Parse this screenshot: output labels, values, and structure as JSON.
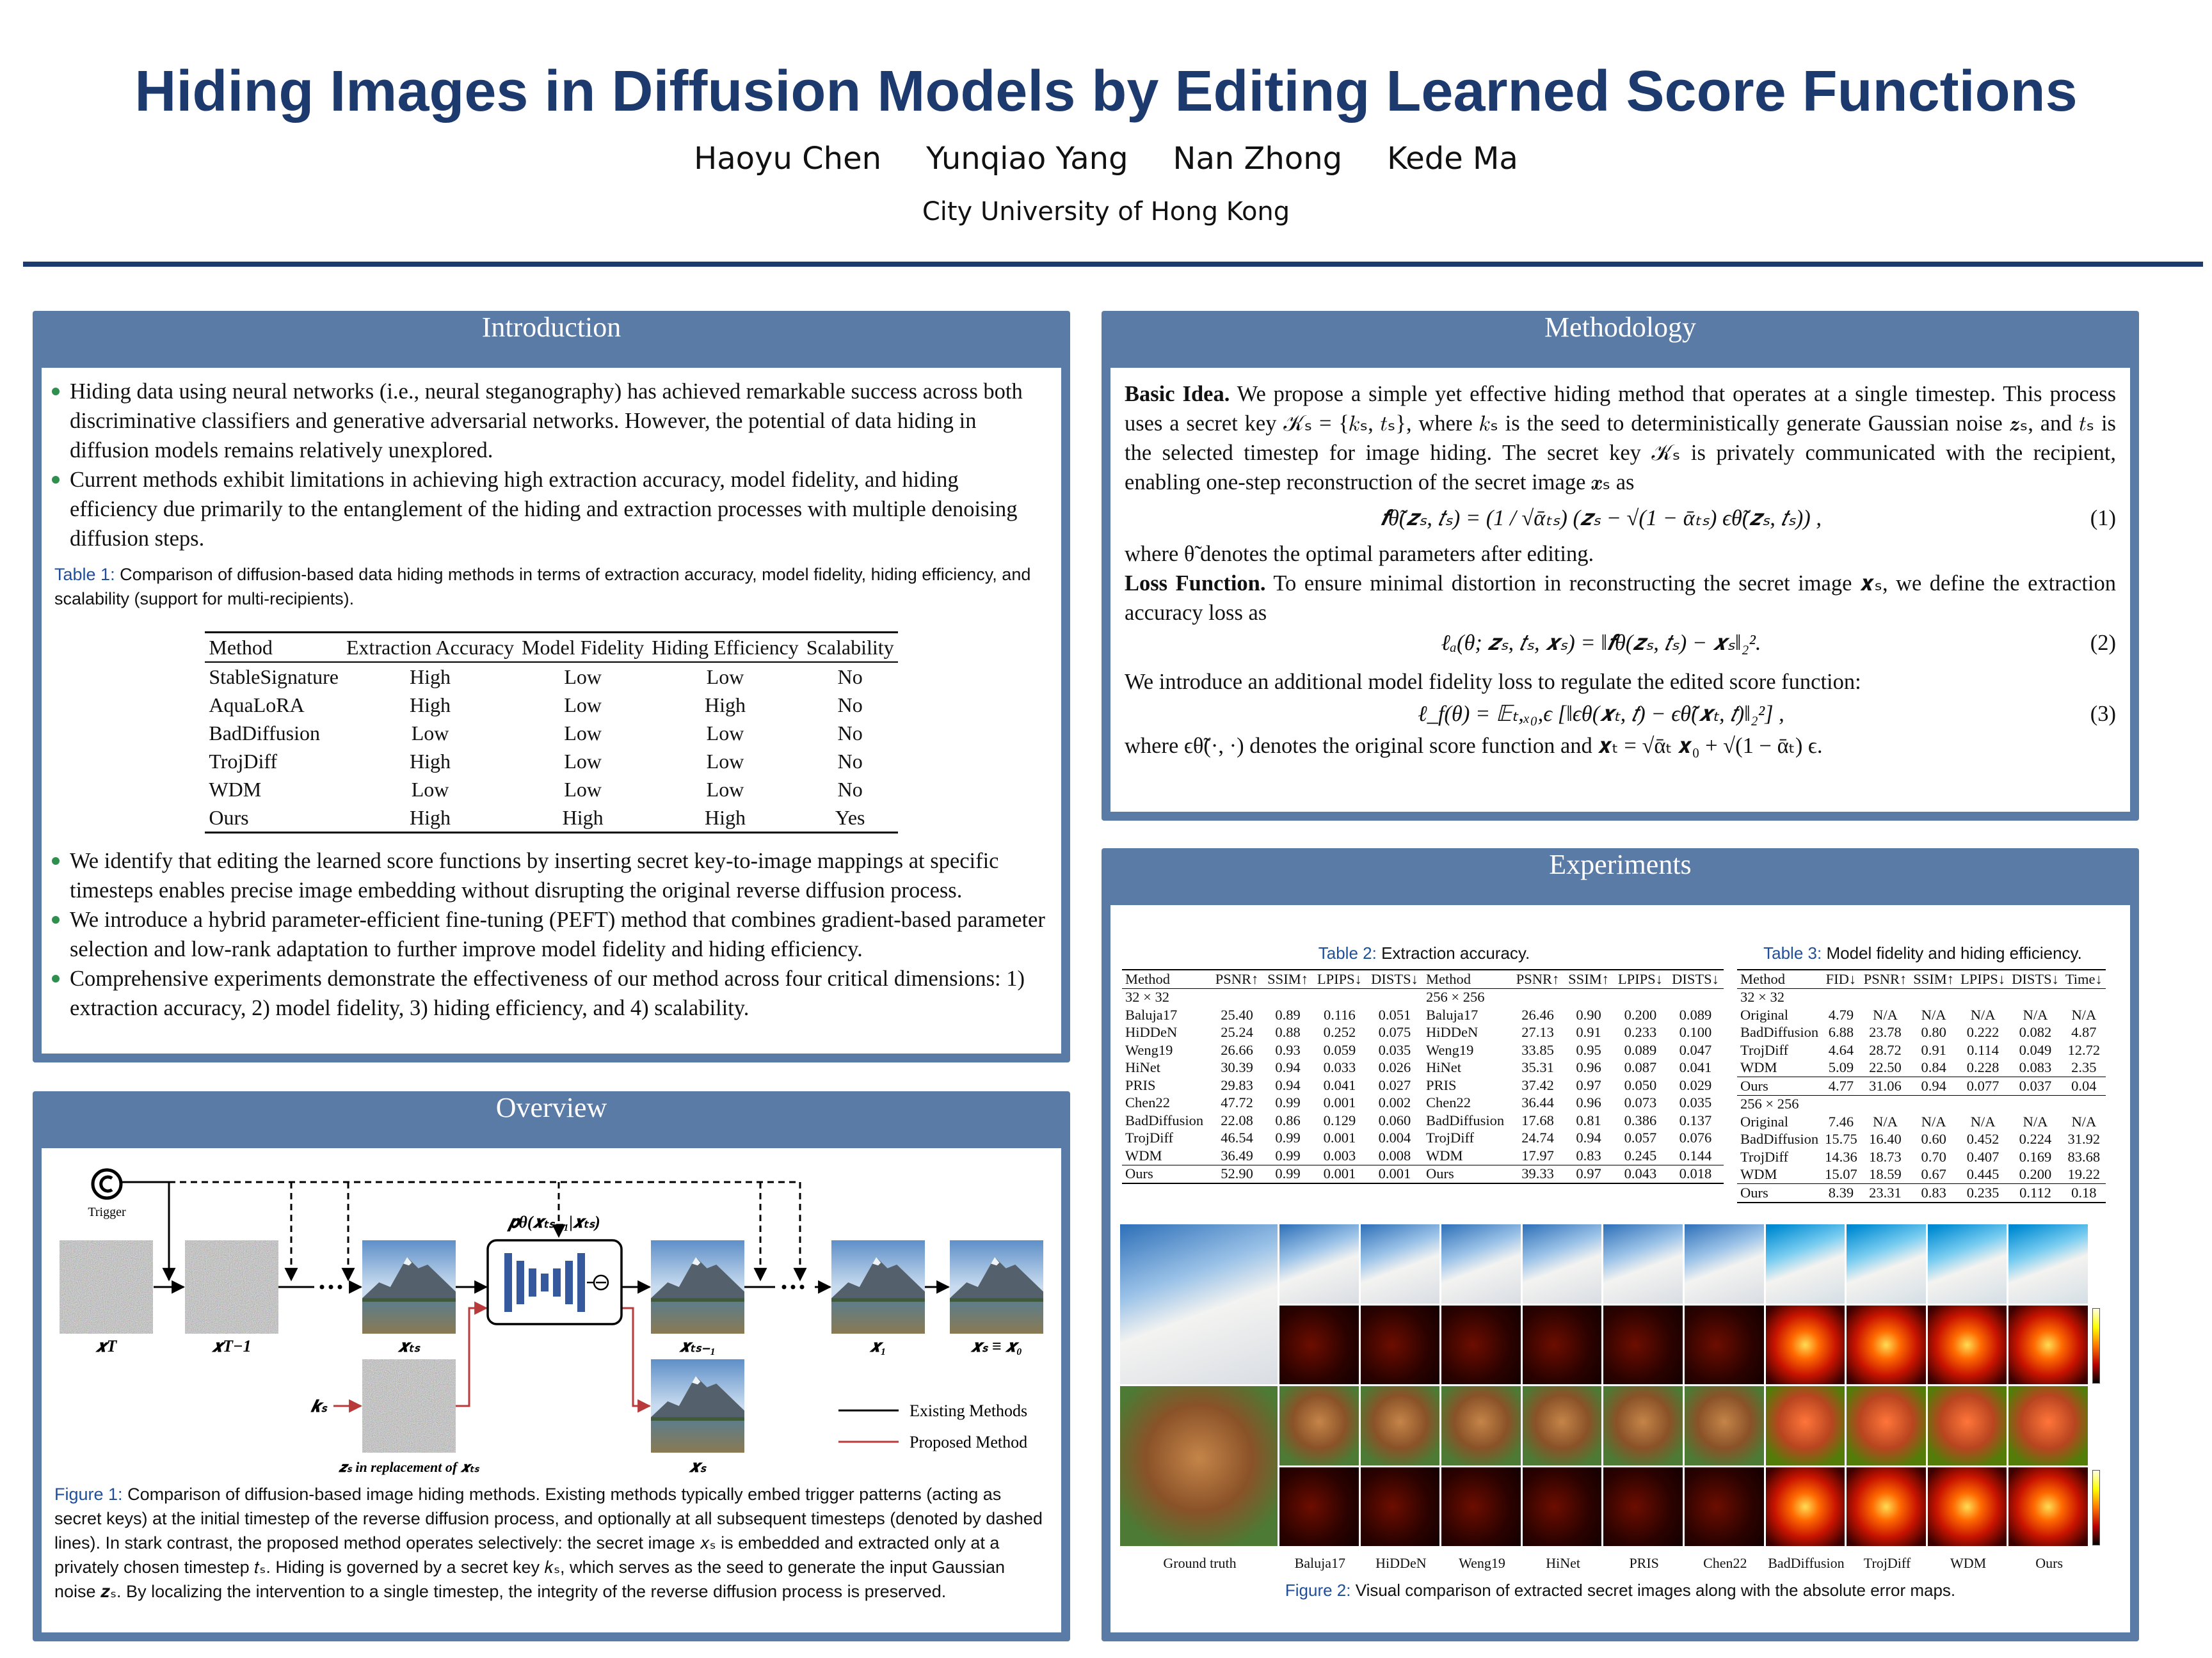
{
  "header": {
    "title": "Hiding Images in Diffusion Models by Editing Learned Score Functions",
    "authors": [
      "Haoyu Chen",
      "Yunqiao Yang",
      "Nan Zhong",
      "Kede Ma"
    ],
    "affiliation": "City University of Hong Kong"
  },
  "introduction": {
    "heading": "Introduction",
    "bullets_top": [
      "Hiding data using neural networks (i.e., neural steganography) has achieved remarkable success across both discriminative classifiers and generative adversarial networks. However, the potential of data hiding in diffusion models remains relatively unexplored.",
      "Current methods exhibit limitations in achieving high extraction accuracy, model fidelity, and hiding efficiency due primarily to the entanglement of the hiding and extraction processes with multiple denoising diffusion steps."
    ],
    "table": {
      "label": "Table 1:",
      "caption": "Comparison of diffusion-based data hiding methods in terms of extraction accuracy, model fidelity, hiding efficiency, and scalability (support for multi-recipients).",
      "columns": [
        "Method",
        "Extraction Accuracy",
        "Model Fidelity",
        "Hiding Efficiency",
        "Scalability"
      ],
      "rows": [
        [
          "StableSignature",
          "High",
          "Low",
          "Low",
          "No"
        ],
        [
          "AquaLoRA",
          "High",
          "Low",
          "High",
          "No"
        ],
        [
          "BadDiffusion",
          "Low",
          "Low",
          "Low",
          "No"
        ],
        [
          "TrojDiff",
          "High",
          "Low",
          "Low",
          "No"
        ],
        [
          "WDM",
          "Low",
          "Low",
          "Low",
          "No"
        ],
        [
          "Ours",
          "High",
          "High",
          "High",
          "Yes"
        ]
      ]
    },
    "bullets_bottom": [
      "We identify that editing the learned score functions by inserting secret key-to-image mappings at specific timesteps enables precise image embedding without disrupting the original reverse diffusion process.",
      "We introduce a hybrid parameter-efficient fine-tuning (PEFT) method that combines gradient-based parameter selection and low-rank adaptation to further improve model fidelity and hiding efficiency.",
      "Comprehensive experiments demonstrate the effectiveness of our method across four critical dimensions: 1) extraction accuracy, 2) model fidelity, 3) hiding efficiency, and 4) scalability."
    ]
  },
  "overview": {
    "heading": "Overview",
    "figure": {
      "trigger": "Trigger",
      "x_T": "𝒙T",
      "x_T_minus_1": "𝒙T−1",
      "x_ts": "𝒙ₜₛ",
      "p_theta": "𝒑θ(𝒙ₜₛ₋₁|𝒙ₜₛ)",
      "x_ts_minus_1": "𝒙ₜₛ₋₁",
      "x_1": "𝒙₁",
      "x_0": "𝒙ₛ ≡ 𝒙₀",
      "k_s": "𝒌ₛ",
      "z_s": "𝒛ₛ in replacement of 𝒙ₜₛ",
      "x_s": "𝒙ₛ"
    },
    "legend": [
      "Existing Methods",
      "Proposed Method"
    ],
    "caption": {
      "label": "Figure 1:",
      "text": "Comparison of diffusion-based image hiding methods. Existing methods typically embed trigger patterns (acting as secret keys) at the initial timestep of the reverse diffusion process, and optionally at all subsequent timesteps (denoted by dashed lines). In stark contrast, the proposed method operates selectively: the secret image 𝑥ₛ is embedded and extracted only at a privately chosen timestep 𝑡ₛ. Hiding is governed by a secret key 𝑘ₛ, which serves as the seed to generate the input Gaussian noise 𝒛ₛ. By localizing the intervention to a single timestep, the integrity of the reverse diffusion process is preserved."
    }
  },
  "methodology": {
    "heading": "Methodology",
    "basic_idea": {
      "heading": "Basic Idea.",
      "text": "We propose a simple yet effective hiding method that operates at a single timestep. This process uses a secret key 𝒦ₛ = {𝑘ₛ, 𝑡ₛ}, where 𝑘ₛ is the seed to deterministically generate Gaussian noise 𝒛ₛ, and 𝑡ₛ is the selected timestep for image hiding. The secret key 𝒦ₛ is privately communicated with the recipient, enabling one-step reconstruction of the secret image 𝒙ₛ as"
    },
    "equation_1": {
      "formula": "𝒇θ̃(𝒛ₛ, 𝑡ₛ) = (1 / √ᾱₜₛ) (𝒛ₛ − √(1 − ᾱₜₛ) ϵθ̃(𝒛ₛ, 𝑡ₛ)) ,",
      "number": "(1)"
    },
    "after_eq1": "where θ̃ denotes the optimal parameters after editing.",
    "loss_function": {
      "heading": "Loss Function.",
      "text": "To ensure minimal distortion in reconstructing the secret image 𝒙ₛ, we define the extraction accuracy loss as"
    },
    "equation_2": {
      "formula": "ℓₐ(θ; 𝒛ₛ, 𝑡ₛ, 𝒙ₛ) = ‖𝒇θ(𝒛ₛ, 𝑡ₛ) − 𝒙ₛ‖₂².",
      "number": "(2)"
    },
    "fidelity_intro": "We introduce an additional model fidelity loss to regulate the edited score function:",
    "equation_3": {
      "formula": "ℓ_f(θ) = 𝔼ₜ,ₓ₀,ϵ [‖ϵθ(𝒙ₜ, 𝑡) − ϵθ̃(𝒙ₜ, 𝑡)‖₂²] ,",
      "number": "(3)"
    },
    "after_eq3": "where ϵθ̃(·, ·) denotes the original score function and 𝒙ₜ = √ᾱₜ 𝒙₀ + √(1 − ᾱₜ) ϵ."
  },
  "experiments": {
    "heading": "Experiments",
    "table2": {
      "label": "Table 2:",
      "caption": "Extraction accuracy.",
      "halves": [
        {
          "columns": [
            "Method",
            "PSNR↑",
            "SSIM↑",
            "LPIPS↓",
            "DISTS↓"
          ],
          "group": "32 × 32",
          "rows": [
            [
              "Baluja17",
              "25.40",
              "0.89",
              "0.116",
              "0.051"
            ],
            [
              "HiDDeN",
              "25.24",
              "0.88",
              "0.252",
              "0.075"
            ],
            [
              "Weng19",
              "26.66",
              "0.93",
              "0.059",
              "0.035"
            ],
            [
              "HiNet",
              "30.39",
              "0.94",
              "0.033",
              "0.026"
            ],
            [
              "PRIS",
              "29.83",
              "0.94",
              "0.041",
              "0.027"
            ],
            [
              "Chen22",
              "47.72",
              "0.99",
              "0.001",
              "0.002"
            ],
            [
              "BadDiffusion",
              "22.08",
              "0.86",
              "0.129",
              "0.060"
            ],
            [
              "TrojDiff",
              "46.54",
              "0.99",
              "0.001",
              "0.004"
            ],
            [
              "WDM",
              "36.49",
              "0.99",
              "0.003",
              "0.008"
            ],
            [
              "Ours",
              "52.90",
              "0.99",
              "0.001",
              "0.001"
            ]
          ]
        },
        {
          "columns": [
            "Method",
            "PSNR↑",
            "SSIM↑",
            "LPIPS↓",
            "DISTS↓"
          ],
          "group": "256 × 256",
          "rows": [
            [
              "Baluja17",
              "26.46",
              "0.90",
              "0.200",
              "0.089"
            ],
            [
              "HiDDeN",
              "27.13",
              "0.91",
              "0.233",
              "0.100"
            ],
            [
              "Weng19",
              "33.85",
              "0.95",
              "0.089",
              "0.047"
            ],
            [
              "HiNet",
              "35.31",
              "0.96",
              "0.087",
              "0.041"
            ],
            [
              "PRIS",
              "37.42",
              "0.97",
              "0.050",
              "0.029"
            ],
            [
              "Chen22",
              "36.44",
              "0.96",
              "0.073",
              "0.035"
            ],
            [
              "BadDiffusion",
              "17.68",
              "0.81",
              "0.386",
              "0.137"
            ],
            [
              "TrojDiff",
              "24.74",
              "0.94",
              "0.057",
              "0.076"
            ],
            [
              "WDM",
              "17.97",
              "0.83",
              "0.245",
              "0.144"
            ],
            [
              "Ours",
              "39.33",
              "0.97",
              "0.043",
              "0.018"
            ]
          ]
        }
      ]
    },
    "table3": {
      "label": "Table 3:",
      "caption": "Model fidelity and hiding efficiency.",
      "columns": [
        "Method",
        "FID↓",
        "PSNR↑",
        "SSIM↑",
        "LPIPS↓",
        "DISTS↓",
        "Time↓"
      ],
      "groups": [
        {
          "label": "32 × 32",
          "rows": [
            [
              "Original",
              "4.79",
              "N/A",
              "N/A",
              "N/A",
              "N/A",
              "N/A"
            ],
            [
              "BadDiffusion",
              "6.88",
              "23.78",
              "0.80",
              "0.222",
              "0.082",
              "4.87"
            ],
            [
              "TrojDiff",
              "4.64",
              "28.72",
              "0.91",
              "0.114",
              "0.049",
              "12.72"
            ],
            [
              "WDM",
              "5.09",
              "22.50",
              "0.84",
              "0.228",
              "0.083",
              "2.35"
            ],
            [
              "Ours",
              "4.77",
              "31.06",
              "0.94",
              "0.077",
              "0.037",
              "0.04"
            ]
          ]
        },
        {
          "label": "256 × 256",
          "rows": [
            [
              "Original",
              "7.46",
              "N/A",
              "N/A",
              "N/A",
              "N/A",
              "N/A"
            ],
            [
              "BadDiffusion",
              "15.75",
              "16.40",
              "0.60",
              "0.452",
              "0.224",
              "31.92"
            ],
            [
              "TrojDiff",
              "14.36",
              "18.73",
              "0.70",
              "0.407",
              "0.169",
              "83.68"
            ],
            [
              "WDM",
              "15.07",
              "18.59",
              "0.67",
              "0.445",
              "0.200",
              "19.22"
            ],
            [
              "Ours",
              "8.39",
              "23.31",
              "0.83",
              "0.235",
              "0.112",
              "0.18"
            ]
          ]
        }
      ]
    },
    "figure2": {
      "columns": [
        "Ground truth",
        "Baluja17",
        "HiDDeN",
        "Weng19",
        "HiNet",
        "PRIS",
        "Chen22",
        "BadDiffusion",
        "TrojDiff",
        "WDM",
        "Ours"
      ],
      "label": "Figure 2:",
      "caption": "Visual comparison of extracted secret images along with the absolute error maps."
    }
  }
}
